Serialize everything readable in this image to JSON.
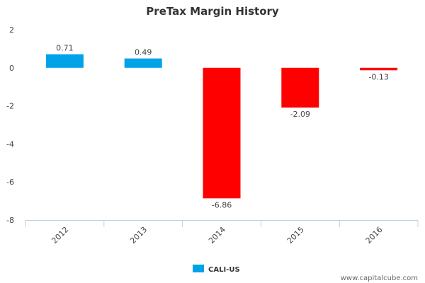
{
  "chart_data": {
    "type": "bar",
    "title": "PreTax Margin History",
    "categories": [
      "2012",
      "2013",
      "2014",
      "2015",
      "2016"
    ],
    "series": [
      {
        "name": "CALI-US",
        "values": [
          0.71,
          0.49,
          -6.86,
          -2.09,
          -0.13
        ]
      }
    ],
    "data_labels": [
      "0.71",
      "0.49",
      "-6.86",
      "-2.09",
      "-0.13"
    ],
    "y_ticks": [
      "2",
      "0",
      "-2",
      "-4",
      "-6",
      "-8"
    ],
    "ylim": [
      -8,
      2
    ],
    "xlabel": "",
    "ylabel": "",
    "grid": false,
    "legend_position": "bottom-center"
  },
  "colors": {
    "positive": "#00A2E8",
    "negative": "#FF0000",
    "axis": "#C0D0E0",
    "legend_swatch": "#00A2E8"
  },
  "watermark": "www.capitalcube.com"
}
